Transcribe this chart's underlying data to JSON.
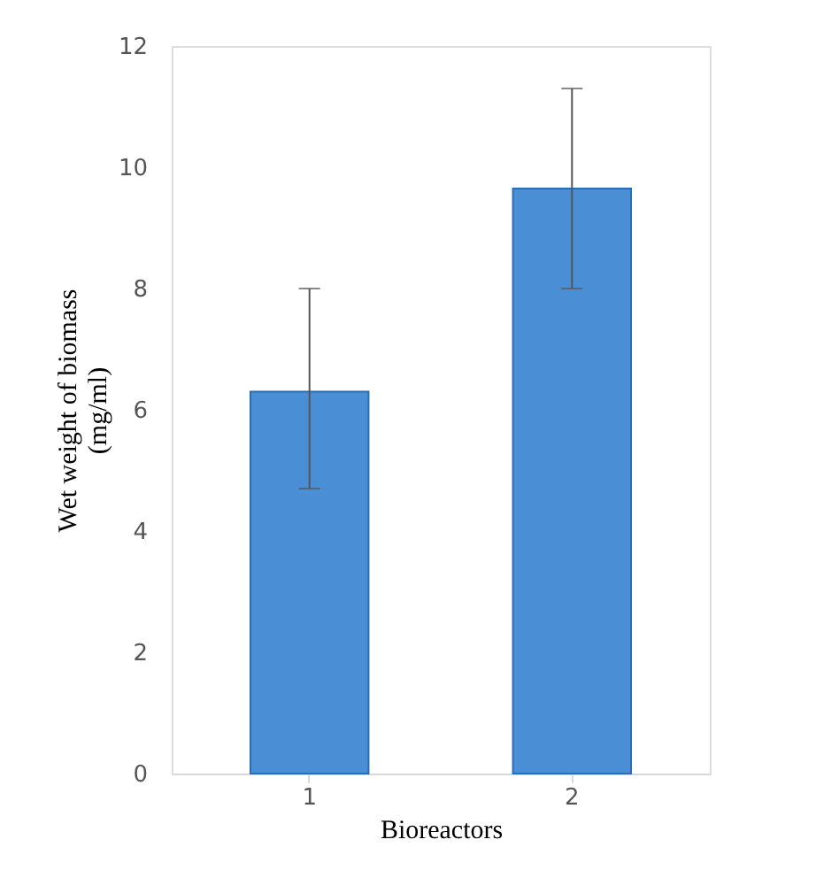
{
  "chart_data": {
    "type": "bar",
    "categories": [
      "1",
      "2"
    ],
    "values": [
      6.3,
      9.65
    ],
    "color": "#4a8fd6",
    "errors": [
      [
        4.7,
        8.0
      ],
      [
        8.0,
        11.3
      ]
    ],
    "ylabel": "Wet weight of biomass\n(mg/ml)",
    "xlabel": "Bioreactors",
    "ylim": [
      0,
      12
    ],
    "yticks": [
      0,
      2,
      4,
      6,
      8,
      10,
      12
    ],
    "grid": false
  }
}
